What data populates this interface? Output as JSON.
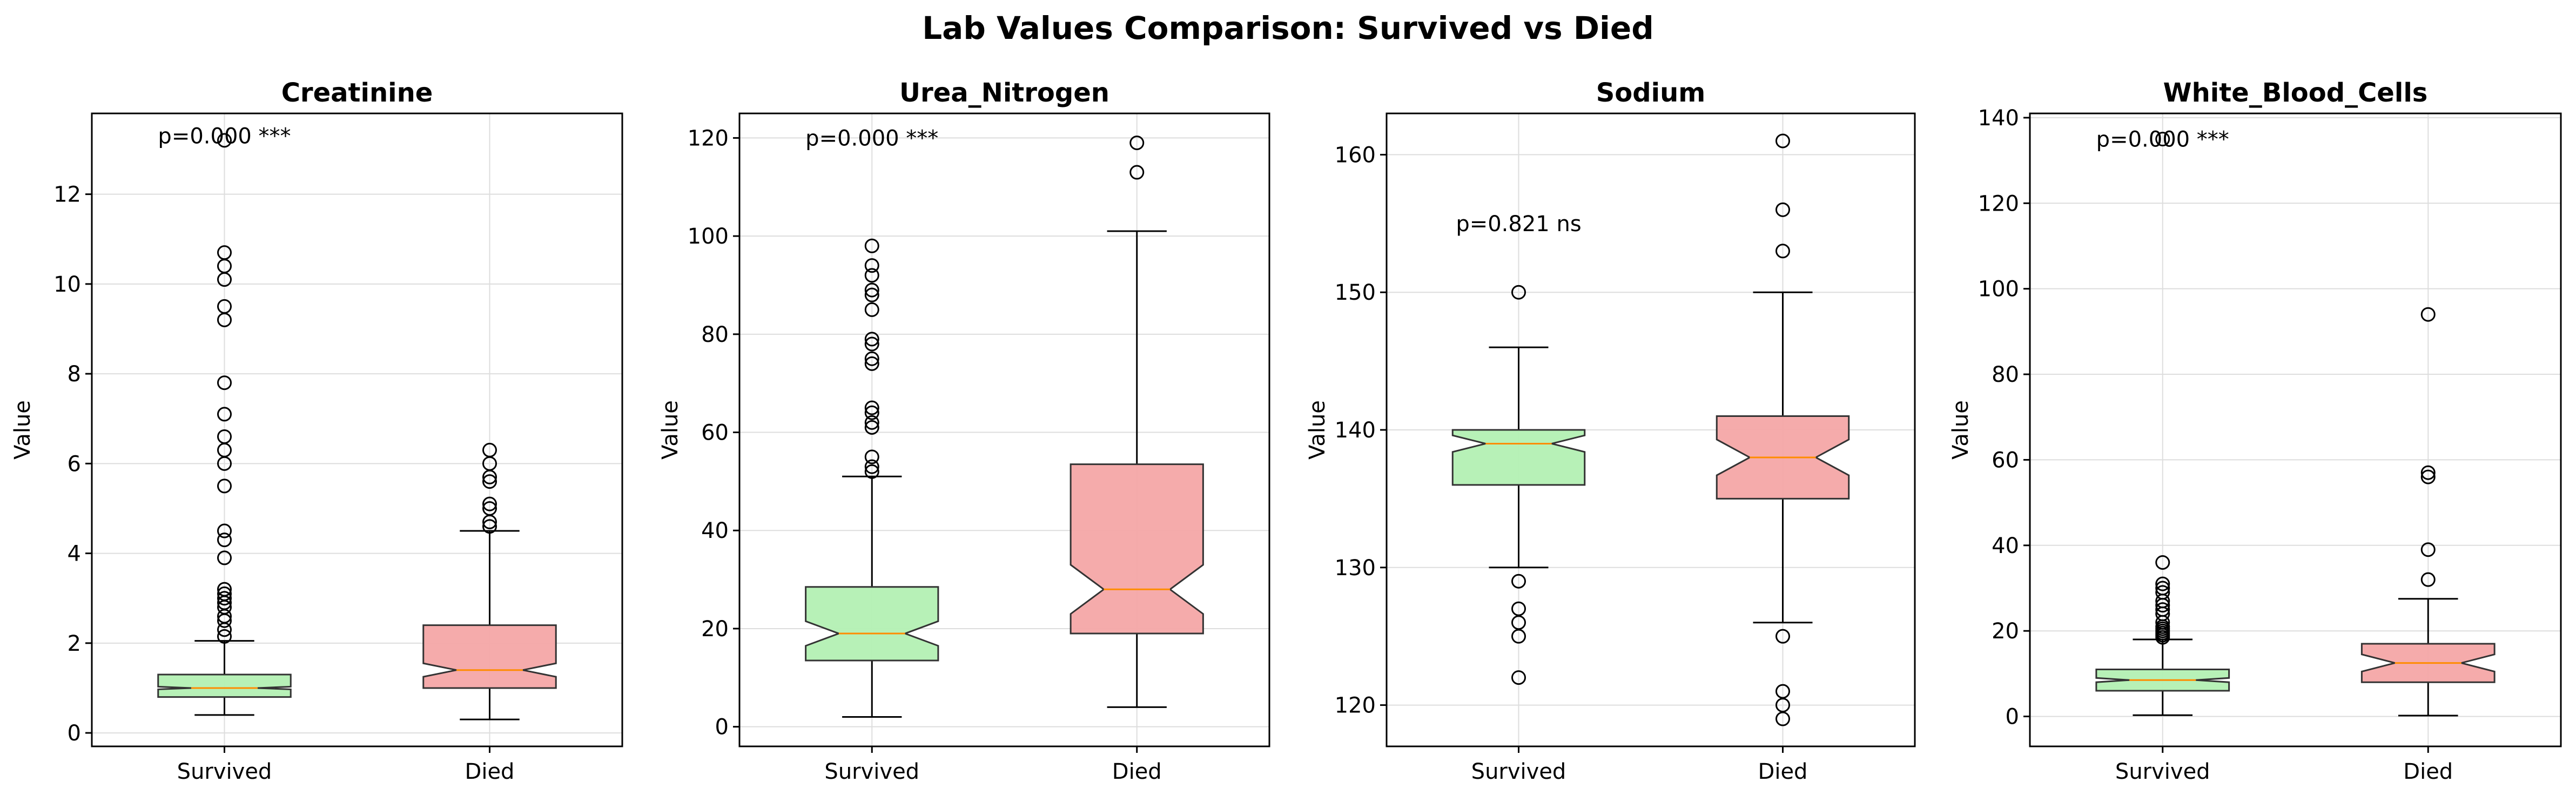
{
  "suptitle": "Lab Values Comparison: Survived vs Died",
  "colors": {
    "survived": "#b3f0b3",
    "died": "#f4a6a6",
    "median": "#ff8c00",
    "grid": "#dddddd"
  },
  "chart_data": [
    {
      "type": "box",
      "title": "Creatinine",
      "ylabel": "Value",
      "categories": [
        "Survived",
        "Died"
      ],
      "ylim": [
        -0.3,
        13.8
      ],
      "yticks": [
        0,
        2,
        4,
        6,
        8,
        10,
        12
      ],
      "annotation": "p=0.000 ***",
      "annotation_pos": [
        0.5,
        13.3
      ],
      "grid": true,
      "boxes": [
        {
          "name": "Survived",
          "q1": 0.8,
          "median": 1.0,
          "q3": 1.3,
          "notch_low": 0.97,
          "notch_high": 1.03,
          "whisker_low": 0.4,
          "whisker_high": 2.05,
          "outliers": [
            13.2,
            10.7,
            10.4,
            10.1,
            9.5,
            9.2,
            7.8,
            7.1,
            6.6,
            6.3,
            6.0,
            5.5,
            4.5,
            4.3,
            3.9,
            3.2,
            3.1,
            3.0,
            2.9,
            2.8,
            2.6,
            2.5,
            2.3,
            2.15
          ]
        },
        {
          "name": "Died",
          "q1": 1.0,
          "median": 1.4,
          "q3": 2.4,
          "notch_low": 1.25,
          "notch_high": 1.55,
          "whisker_low": 0.3,
          "whisker_high": 4.5,
          "outliers": [
            6.3,
            6.0,
            5.7,
            5.6,
            5.1,
            5.0,
            4.7,
            4.6
          ]
        }
      ]
    },
    {
      "type": "box",
      "title": "Urea_Nitrogen",
      "ylabel": "Value",
      "categories": [
        "Survived",
        "Died"
      ],
      "ylim": [
        -4,
        125
      ],
      "yticks": [
        0,
        20,
        40,
        60,
        80,
        100,
        120
      ],
      "annotation": "p=0.000 ***",
      "annotation_pos": [
        0.5,
        120
      ],
      "grid": true,
      "boxes": [
        {
          "name": "Survived",
          "q1": 13.5,
          "median": 19,
          "q3": 28.5,
          "notch_low": 16.5,
          "notch_high": 21.5,
          "whisker_low": 2,
          "whisker_high": 51,
          "outliers": [
            98,
            94,
            92,
            89,
            88,
            85,
            79,
            78,
            75,
            74,
            65,
            64,
            62,
            61,
            55,
            53,
            52
          ]
        },
        {
          "name": "Died",
          "q1": 19,
          "median": 28,
          "q3": 53.5,
          "notch_low": 23,
          "notch_high": 33,
          "whisker_low": 4,
          "whisker_high": 101,
          "outliers": [
            119,
            113
          ]
        }
      ]
    },
    {
      "type": "box",
      "title": "Sodium",
      "ylabel": "Value",
      "categories": [
        "Survived",
        "Died"
      ],
      "ylim": [
        117,
        163
      ],
      "yticks": [
        120,
        130,
        140,
        150,
        160
      ],
      "annotation": "p=0.821 ns",
      "annotation_pos": [
        0.5,
        155
      ],
      "grid": true,
      "boxes": [
        {
          "name": "Survived",
          "q1": 136,
          "median": 139,
          "q3": 140,
          "notch_low": 138.4,
          "notch_high": 139.6,
          "whisker_low": 130,
          "whisker_high": 146,
          "outliers": [
            150,
            129,
            127,
            126,
            125,
            122
          ]
        },
        {
          "name": "Died",
          "q1": 135,
          "median": 138,
          "q3": 141,
          "notch_low": 136.7,
          "notch_high": 139.3,
          "whisker_low": 126,
          "whisker_high": 150,
          "outliers": [
            161,
            156,
            153,
            125,
            121,
            120,
            119
          ]
        }
      ]
    },
    {
      "type": "box",
      "title": "White_Blood_Cells",
      "ylabel": "Value",
      "categories": [
        "Survived",
        "Died"
      ],
      "ylim": [
        -7,
        141
      ],
      "yticks": [
        0,
        20,
        40,
        60,
        80,
        100,
        120,
        140
      ],
      "annotation": "p=0.000 ***",
      "annotation_pos": [
        0.5,
        135
      ],
      "grid": true,
      "boxes": [
        {
          "name": "Survived",
          "q1": 6,
          "median": 8.5,
          "q3": 11,
          "notch_low": 8.0,
          "notch_high": 9.0,
          "whisker_low": 0.3,
          "whisker_high": 18,
          "outliers": [
            135,
            36,
            31,
            30,
            29,
            27,
            26,
            25,
            24,
            22,
            21,
            20.5,
            20,
            19.5,
            19,
            18.5
          ]
        },
        {
          "name": "Died",
          "q1": 8,
          "median": 12.5,
          "q3": 17,
          "notch_low": 10.5,
          "notch_high": 14.5,
          "whisker_low": 0.2,
          "whisker_high": 27.5,
          "outliers": [
            94,
            57,
            56,
            39,
            32
          ]
        }
      ]
    }
  ]
}
